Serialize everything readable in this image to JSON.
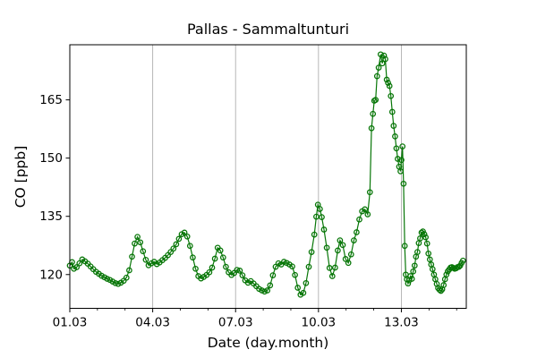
{
  "chart_data": {
    "type": "line",
    "title": "Pallas - Sammaltunturi",
    "xlabel": "Date (day.month)",
    "ylabel": "CO [ppb]",
    "xlim": [
      1,
      15.35
    ],
    "ylim": [
      111.3,
      179.2
    ],
    "x_major_ticks": {
      "days": [
        1,
        4,
        7,
        10,
        13
      ],
      "labels": [
        "01.03",
        "04.03",
        "07.03",
        "10.03",
        "13.03"
      ]
    },
    "x_minor_tick_days": [
      2,
      3,
      5,
      6,
      8,
      9,
      11,
      12,
      14,
      15
    ],
    "y_ticks": [
      120,
      135,
      150,
      165
    ],
    "grid": {
      "axis": "x",
      "color": "#b0b0b0",
      "show_on_days": [
        4,
        7,
        10,
        13
      ]
    },
    "legend": "none",
    "series": [
      {
        "name": "CO",
        "color": "#077607",
        "marker": "circle-open",
        "points": [
          [
            1.0,
            122.3
          ],
          [
            1.08,
            123.2
          ],
          [
            1.15,
            121.5
          ],
          [
            1.25,
            121.9
          ],
          [
            1.35,
            122.9
          ],
          [
            1.45,
            123.9
          ],
          [
            1.55,
            123.4
          ],
          [
            1.65,
            122.8
          ],
          [
            1.75,
            122.1
          ],
          [
            1.85,
            121.4
          ],
          [
            1.95,
            120.7
          ],
          [
            2.05,
            120.2
          ],
          [
            2.15,
            119.7
          ],
          [
            2.25,
            119.3
          ],
          [
            2.35,
            118.9
          ],
          [
            2.45,
            118.6
          ],
          [
            2.55,
            118.2
          ],
          [
            2.65,
            117.8
          ],
          [
            2.75,
            117.6
          ],
          [
            2.85,
            117.9
          ],
          [
            2.95,
            118.4
          ],
          [
            3.05,
            119.2
          ],
          [
            3.15,
            121.1
          ],
          [
            3.25,
            124.6
          ],
          [
            3.35,
            128.0
          ],
          [
            3.45,
            129.7
          ],
          [
            3.55,
            128.3
          ],
          [
            3.65,
            126.0
          ],
          [
            3.75,
            123.8
          ],
          [
            3.85,
            122.4
          ],
          [
            3.95,
            122.9
          ],
          [
            4.05,
            123.3
          ],
          [
            4.15,
            122.7
          ],
          [
            4.25,
            123.1
          ],
          [
            4.35,
            123.7
          ],
          [
            4.45,
            124.3
          ],
          [
            4.55,
            125.0
          ],
          [
            4.65,
            125.8
          ],
          [
            4.75,
            126.7
          ],
          [
            4.85,
            127.8
          ],
          [
            4.95,
            129.2
          ],
          [
            5.05,
            130.4
          ],
          [
            5.15,
            130.8
          ],
          [
            5.25,
            129.8
          ],
          [
            5.35,
            127.4
          ],
          [
            5.45,
            124.4
          ],
          [
            5.55,
            121.5
          ],
          [
            5.65,
            119.6
          ],
          [
            5.75,
            119.0
          ],
          [
            5.85,
            119.4
          ],
          [
            5.95,
            119.9
          ],
          [
            6.05,
            120.6
          ],
          [
            6.15,
            121.8
          ],
          [
            6.25,
            124.1
          ],
          [
            6.35,
            126.9
          ],
          [
            6.45,
            126.2
          ],
          [
            6.55,
            124.4
          ],
          [
            6.65,
            122.0
          ],
          [
            6.75,
            120.6
          ],
          [
            6.85,
            119.9
          ],
          [
            6.95,
            120.4
          ],
          [
            7.05,
            121.2
          ],
          [
            7.15,
            121.0
          ],
          [
            7.25,
            119.8
          ],
          [
            7.35,
            118.5
          ],
          [
            7.45,
            117.9
          ],
          [
            7.55,
            118.3
          ],
          [
            7.65,
            117.7
          ],
          [
            7.75,
            117.0
          ],
          [
            7.85,
            116.3
          ],
          [
            7.95,
            115.9
          ],
          [
            8.05,
            115.6
          ],
          [
            8.15,
            115.9
          ],
          [
            8.25,
            117.2
          ],
          [
            8.35,
            119.8
          ],
          [
            8.45,
            122.0
          ],
          [
            8.55,
            122.9
          ],
          [
            8.65,
            122.6
          ],
          [
            8.75,
            123.3
          ],
          [
            8.85,
            123.0
          ],
          [
            8.95,
            122.6
          ],
          [
            9.05,
            122.1
          ],
          [
            9.15,
            119.9
          ],
          [
            9.25,
            116.6
          ],
          [
            9.35,
            114.8
          ],
          [
            9.45,
            115.3
          ],
          [
            9.55,
            117.8
          ],
          [
            9.65,
            122.0
          ],
          [
            9.75,
            125.8
          ],
          [
            9.85,
            130.3
          ],
          [
            9.92,
            134.9
          ],
          [
            9.98,
            138.0
          ],
          [
            10.05,
            136.9
          ],
          [
            10.12,
            134.8
          ],
          [
            10.2,
            131.6
          ],
          [
            10.3,
            126.9
          ],
          [
            10.4,
            121.7
          ],
          [
            10.5,
            119.6
          ],
          [
            10.6,
            121.8
          ],
          [
            10.7,
            126.2
          ],
          [
            10.78,
            128.8
          ],
          [
            10.88,
            127.6
          ],
          [
            10.98,
            124.0
          ],
          [
            11.08,
            123.0
          ],
          [
            11.18,
            125.2
          ],
          [
            11.28,
            128.8
          ],
          [
            11.38,
            130.9
          ],
          [
            11.48,
            134.2
          ],
          [
            11.58,
            136.3
          ],
          [
            11.68,
            136.8
          ],
          [
            11.78,
            135.5
          ],
          [
            11.86,
            141.2
          ],
          [
            11.92,
            157.7
          ],
          [
            11.97,
            161.4
          ],
          [
            12.02,
            164.8
          ],
          [
            12.07,
            165.0
          ],
          [
            12.12,
            171.1
          ],
          [
            12.18,
            173.3
          ],
          [
            12.25,
            176.7
          ],
          [
            12.31,
            174.4
          ],
          [
            12.37,
            176.4
          ],
          [
            12.42,
            175.5
          ],
          [
            12.47,
            170.2
          ],
          [
            12.52,
            169.4
          ],
          [
            12.57,
            168.6
          ],
          [
            12.62,
            166.0
          ],
          [
            12.67,
            161.9
          ],
          [
            12.72,
            158.3
          ],
          [
            12.77,
            155.6
          ],
          [
            12.82,
            152.5
          ],
          [
            12.87,
            149.8
          ],
          [
            12.92,
            147.8
          ],
          [
            12.97,
            146.6
          ],
          [
            13.0,
            149.5
          ],
          [
            13.04,
            153.0
          ],
          [
            13.08,
            143.4
          ],
          [
            13.12,
            127.4
          ],
          [
            13.16,
            120.0
          ],
          [
            13.2,
            118.8
          ],
          [
            13.24,
            117.7
          ],
          [
            13.28,
            118.5
          ],
          [
            13.33,
            119.6
          ],
          [
            13.38,
            118.9
          ],
          [
            13.43,
            120.8
          ],
          [
            13.48,
            122.3
          ],
          [
            13.53,
            124.6
          ],
          [
            13.58,
            125.8
          ],
          [
            13.63,
            128.1
          ],
          [
            13.68,
            129.3
          ],
          [
            13.73,
            130.8
          ],
          [
            13.78,
            131.1
          ],
          [
            13.83,
            130.4
          ],
          [
            13.88,
            129.6
          ],
          [
            13.93,
            128.0
          ],
          [
            13.98,
            125.4
          ],
          [
            14.03,
            123.9
          ],
          [
            14.08,
            122.6
          ],
          [
            14.13,
            121.4
          ],
          [
            14.18,
            120.0
          ],
          [
            14.23,
            118.8
          ],
          [
            14.28,
            117.6
          ],
          [
            14.33,
            116.5
          ],
          [
            14.38,
            116.1
          ],
          [
            14.43,
            115.8
          ],
          [
            14.48,
            116.2
          ],
          [
            14.53,
            117.3
          ],
          [
            14.58,
            118.8
          ],
          [
            14.63,
            120.0
          ],
          [
            14.68,
            120.8
          ],
          [
            14.73,
            121.3
          ],
          [
            14.78,
            121.8
          ],
          [
            14.83,
            121.9
          ],
          [
            14.88,
            121.7
          ],
          [
            14.93,
            121.5
          ],
          [
            14.98,
            121.6
          ],
          [
            15.03,
            121.9
          ],
          [
            15.08,
            122.0
          ],
          [
            15.13,
            122.3
          ],
          [
            15.18,
            123.0
          ],
          [
            15.23,
            123.6
          ]
        ]
      }
    ]
  }
}
